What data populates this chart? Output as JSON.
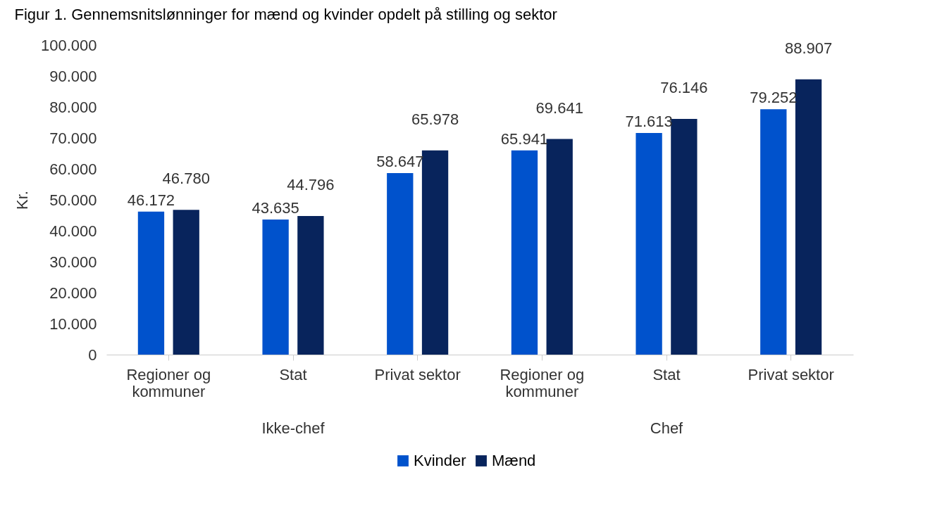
{
  "chart_data": {
    "type": "bar",
    "title": "Figur 1. Gennemsnitslønninger for mænd og kvinder opdelt på stilling og sektor",
    "ylabel": "Kr.",
    "categories": [
      "Regioner og kommuner",
      "Stat",
      "Privat sektor",
      "Regioner og kommuner",
      "Stat",
      "Privat sektor"
    ],
    "series": [
      {
        "name": "Kvinder",
        "color": "#0052cc",
        "values": [
          46172,
          43635,
          58647,
          65941,
          71613,
          79252
        ],
        "value_labels": [
          "46.172",
          "43.635",
          "58.647",
          "65.941",
          "71.613",
          "79.252"
        ]
      },
      {
        "name": "Mænd",
        "color": "#08245c",
        "values": [
          46780,
          44796,
          65978,
          69641,
          76146,
          88907
        ],
        "value_labels": [
          "46.780",
          "44.796",
          "65.978",
          "69.641",
          "76.146",
          "88.907"
        ]
      }
    ],
    "annotations": [
      "Ikke-chef",
      "Chef"
    ],
    "ylim": [
      0,
      100000
    ],
    "yticks": [
      {
        "value": 0,
        "label": "0"
      },
      {
        "value": 10000,
        "label": "10.000"
      },
      {
        "value": 20000,
        "label": "20.000"
      },
      {
        "value": 30000,
        "label": "30.000"
      },
      {
        "value": 40000,
        "label": "40.000"
      },
      {
        "value": 50000,
        "label": "50.000"
      },
      {
        "value": 60000,
        "label": "60.000"
      },
      {
        "value": 70000,
        "label": "70.000"
      },
      {
        "value": 80000,
        "label": "80.000"
      },
      {
        "value": 90000,
        "label": "90.000"
      },
      {
        "value": 100000,
        "label": "100.000"
      }
    ],
    "legend": "bottom"
  }
}
